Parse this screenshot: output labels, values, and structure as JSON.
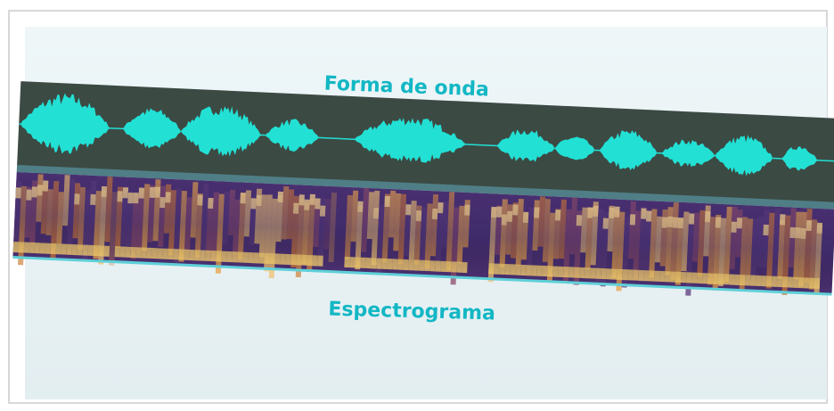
{
  "labels": {
    "waveform": "Forma de onda",
    "spectrogram": "Espectrograma"
  }
}
